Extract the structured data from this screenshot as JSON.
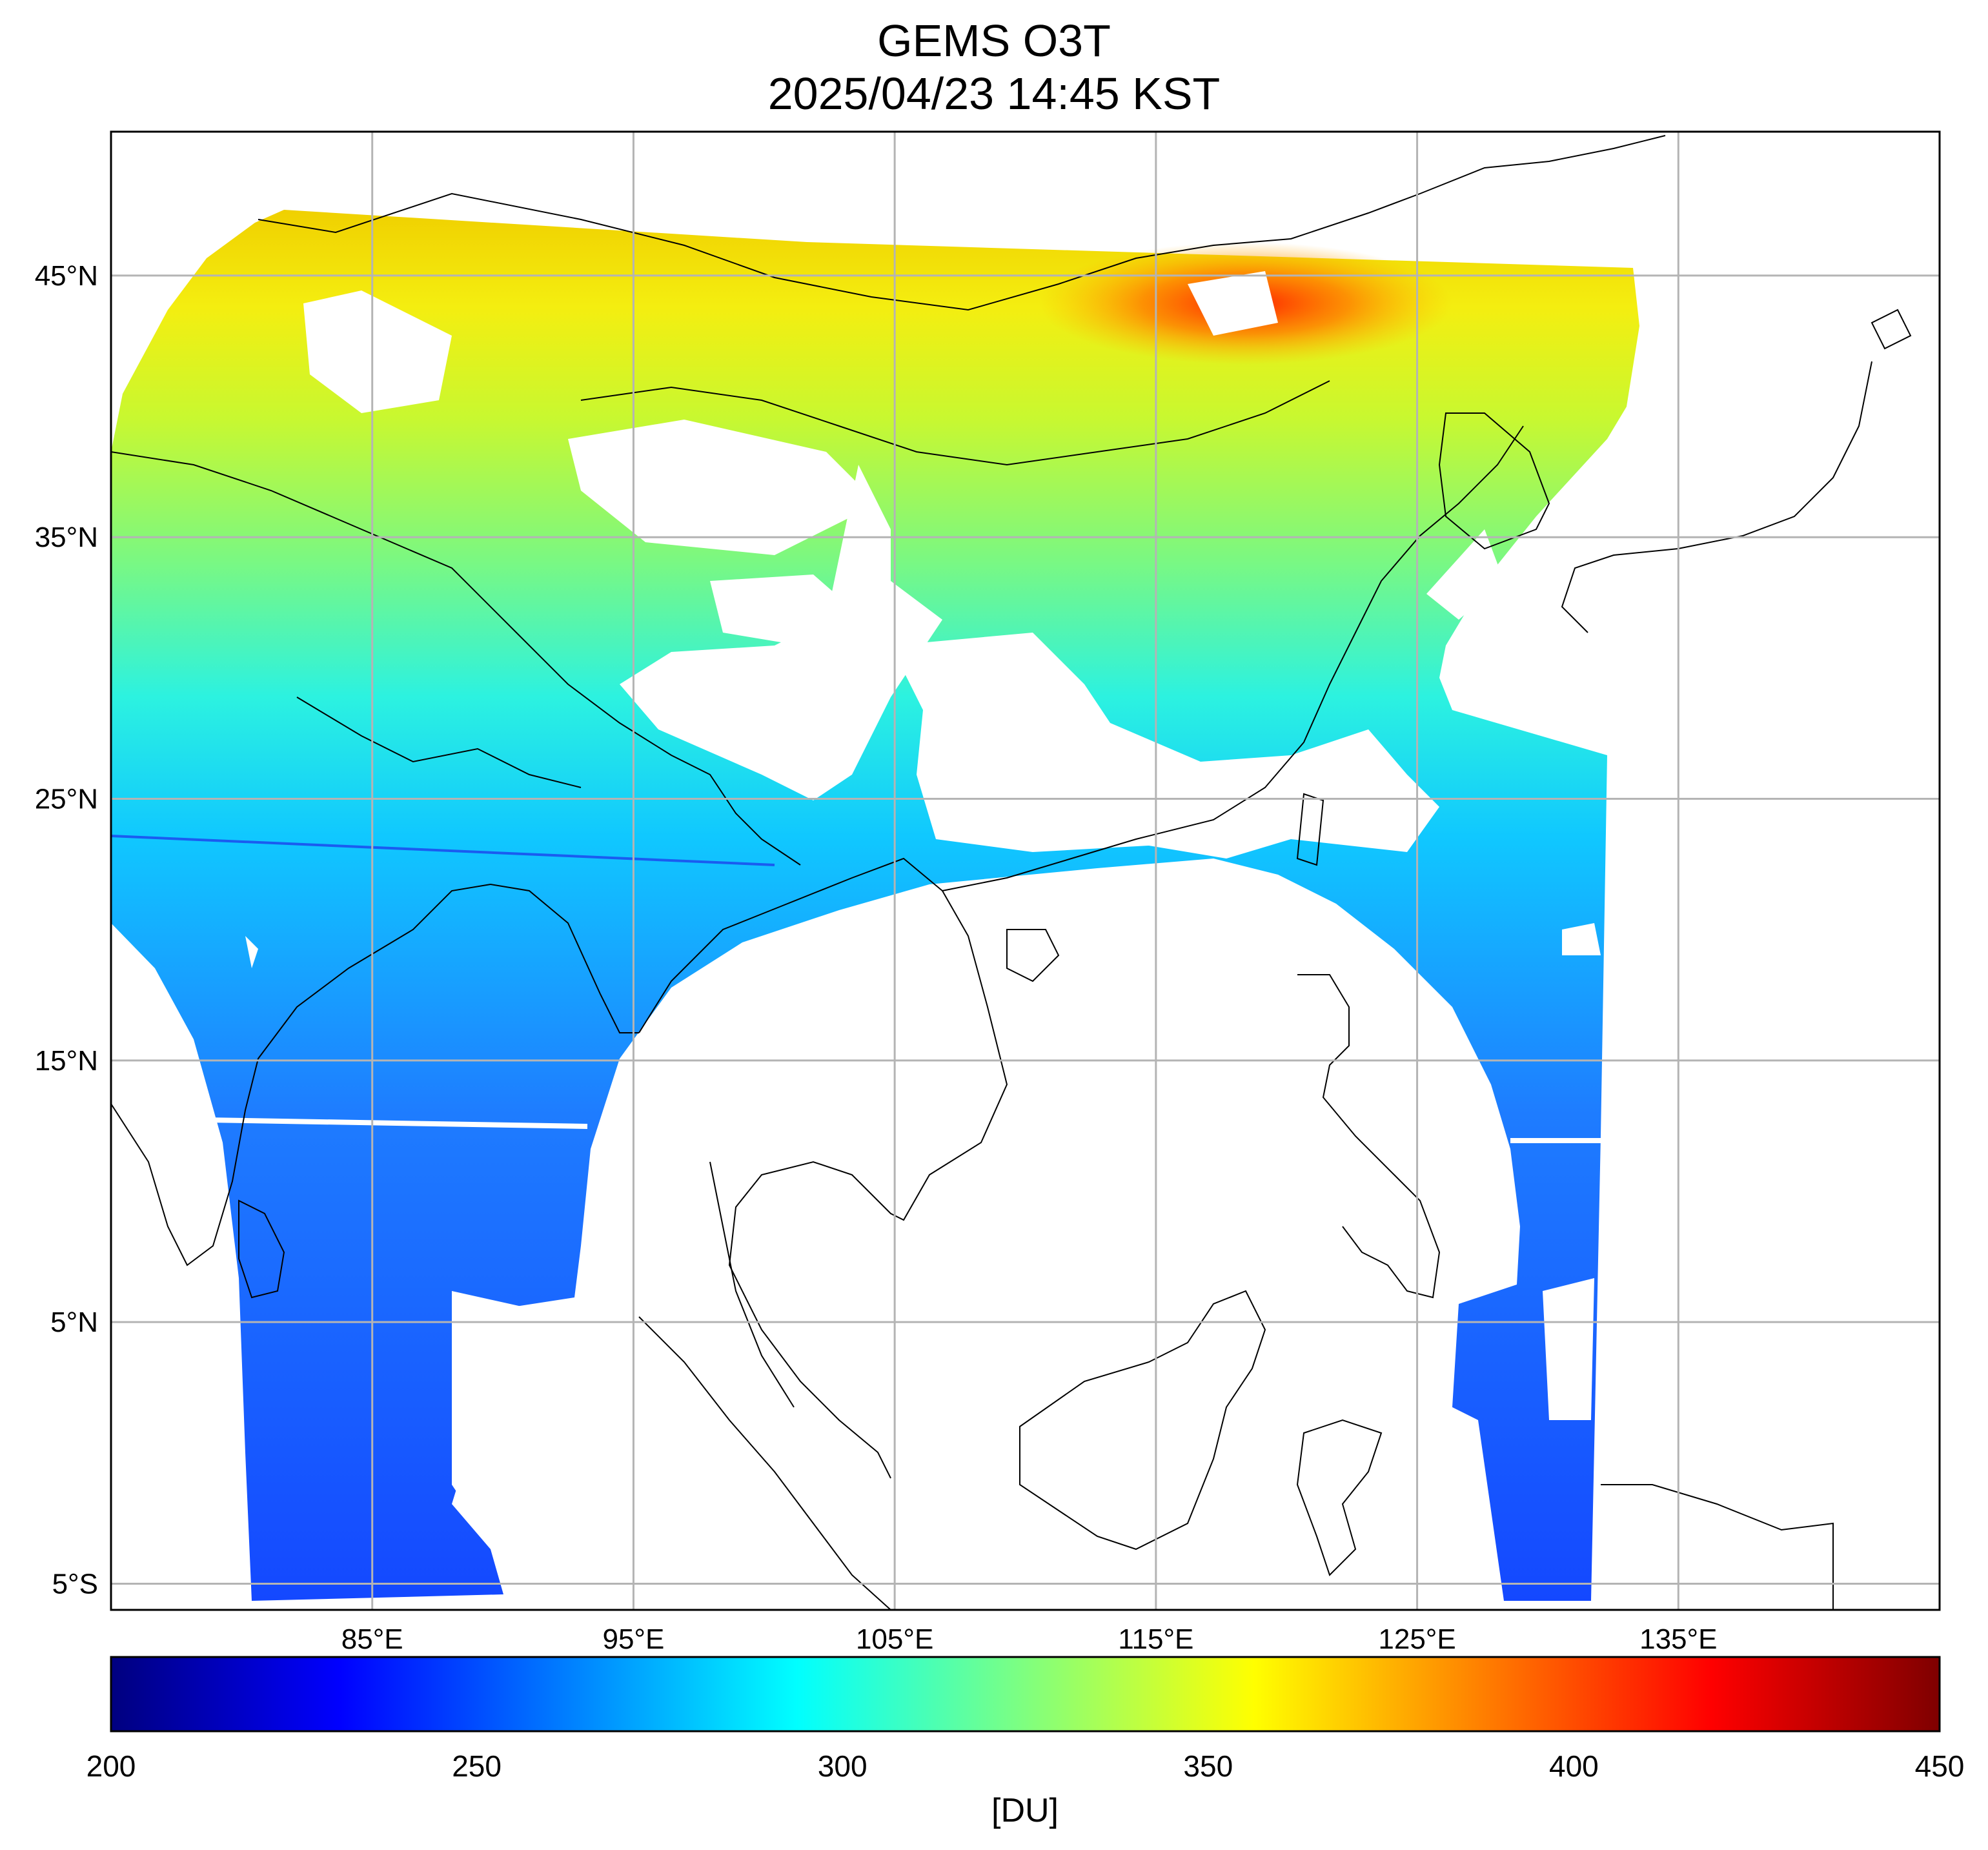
{
  "title": "GEMS O3T",
  "subtitle": "2025/04/23 14:45 KST",
  "map": {
    "lon_range": [
      75,
      145
    ],
    "lat_range": [
      -6,
      50.5
    ],
    "lat_ticks": [
      {
        "value": 45,
        "label": "45°N"
      },
      {
        "value": 35,
        "label": "35°N"
      },
      {
        "value": 25,
        "label": "25°N"
      },
      {
        "value": 15,
        "label": "15°N"
      },
      {
        "value": 5,
        "label": "5°N"
      },
      {
        "value": -5,
        "label": "5°S"
      }
    ],
    "lon_ticks": [
      {
        "value": 85,
        "label": "85°E"
      },
      {
        "value": 95,
        "label": "95°E"
      },
      {
        "value": 105,
        "label": "105°E"
      },
      {
        "value": 115,
        "label": "115°E"
      },
      {
        "value": 125,
        "label": "125°E"
      },
      {
        "value": 135,
        "label": "135°E"
      }
    ],
    "gridlines": true,
    "grid_color": "#b4b4b4"
  },
  "colorbar": {
    "min": 200,
    "max": 450,
    "ticks": [
      {
        "value": 200,
        "label": "200"
      },
      {
        "value": 250,
        "label": "250"
      },
      {
        "value": 300,
        "label": "300"
      },
      {
        "value": 350,
        "label": "350"
      },
      {
        "value": 400,
        "label": "400"
      },
      {
        "value": 450,
        "label": "450"
      }
    ],
    "unit": "[DU]",
    "colormap": [
      "#00007f",
      "#0000ff",
      "#007fff",
      "#00ffff",
      "#7fff7f",
      "#ffff00",
      "#ff7f00",
      "#ff0000",
      "#7f0000"
    ]
  }
}
